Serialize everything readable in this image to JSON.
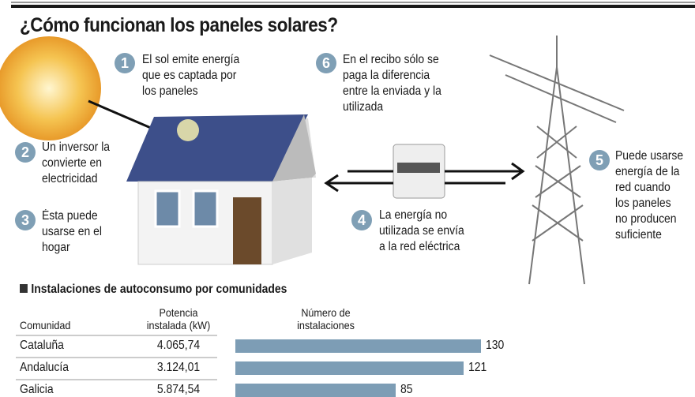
{
  "title": "¿Cómo funcionan los paneles solares?",
  "steps": [
    {
      "n": "1",
      "lines": [
        "El sol emite energía",
        "que es captada por",
        "los paneles"
      ]
    },
    {
      "n": "2",
      "lines": [
        "Un inversor la",
        "convierte en",
        "electricidad"
      ]
    },
    {
      "n": "3",
      "lines": [
        "Ésta puede",
        "usarse en el",
        "hogar"
      ]
    },
    {
      "n": "4",
      "lines": [
        "La energía no",
        "utilizada se envía",
        "a la red eléctrica"
      ]
    },
    {
      "n": "5",
      "lines": [
        "Puede usarse",
        "energía de la",
        "red cuando",
        "los paneles",
        "no producen",
        "suficiente"
      ]
    },
    {
      "n": "6",
      "lines": [
        "En el recibo sólo se",
        "paga la diferencia",
        "entre la enviada y la",
        "utilizada"
      ]
    }
  ],
  "colors": {
    "accent": "#7f9fb5",
    "bar": "#7d9db5"
  },
  "chart_data": {
    "type": "table",
    "title": "Instalaciones de autoconsumo por comunidades",
    "columns": [
      "Comunidad",
      "Potencia instalada (kW)",
      "Número de instalaciones"
    ],
    "header_lines": {
      "comunidad": "Comunidad",
      "potencia": [
        "Potencia",
        "instalada (kW)"
      ],
      "numero": [
        "Número de",
        "instalaciones"
      ]
    },
    "rows": [
      {
        "comunidad": "Cataluña",
        "potencia": "4.065,74",
        "instalaciones": 130
      },
      {
        "comunidad": "Andalucía",
        "potencia": "3.124,01",
        "instalaciones": 121
      },
      {
        "comunidad": "Galicia",
        "potencia": "5.874,54",
        "instalaciones": 85
      }
    ]
  }
}
